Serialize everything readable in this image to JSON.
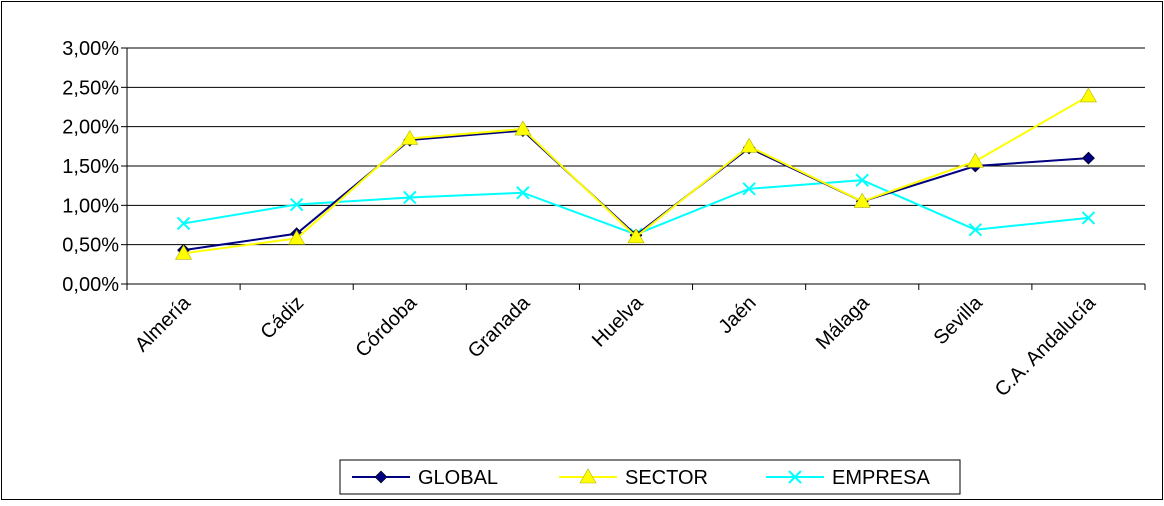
{
  "chart_data": {
    "type": "line",
    "title": "",
    "xlabel": "",
    "ylabel": "",
    "categories": [
      "Almería",
      "Cádiz",
      "Córdoba",
      "Granada",
      "Huelva",
      "Jaén",
      "Málaga",
      "Sevilla",
      "C.A. Andalucía"
    ],
    "ylim": [
      0,
      0.03
    ],
    "y_ticks": [
      0,
      0.005,
      0.01,
      0.015,
      0.02,
      0.025,
      0.03
    ],
    "y_tick_labels": [
      "0,00%",
      "0,50%",
      "1,00%",
      "1,50%",
      "2,00%",
      "2,50%",
      "3,00%"
    ],
    "grid": "horizontal",
    "legend": "bottom",
    "series": [
      {
        "name": "GLOBAL",
        "color": "#000080",
        "marker": "diamond",
        "values": [
          0.0043,
          0.0064,
          0.0183,
          0.0195,
          0.0062,
          0.0173,
          0.0105,
          0.015,
          0.016
        ]
      },
      {
        "name": "SECTOR",
        "color": "#FFFF00",
        "marker": "triangle",
        "values": [
          0.0039,
          0.0058,
          0.0185,
          0.0197,
          0.006,
          0.0175,
          0.0105,
          0.0156,
          0.0239
        ]
      },
      {
        "name": "EMPRESA",
        "color": "#00FFFF",
        "marker": "x",
        "values": [
          0.0077,
          0.0101,
          0.011,
          0.0116,
          0.0063,
          0.0121,
          0.0132,
          0.0069,
          0.0084
        ]
      }
    ]
  }
}
